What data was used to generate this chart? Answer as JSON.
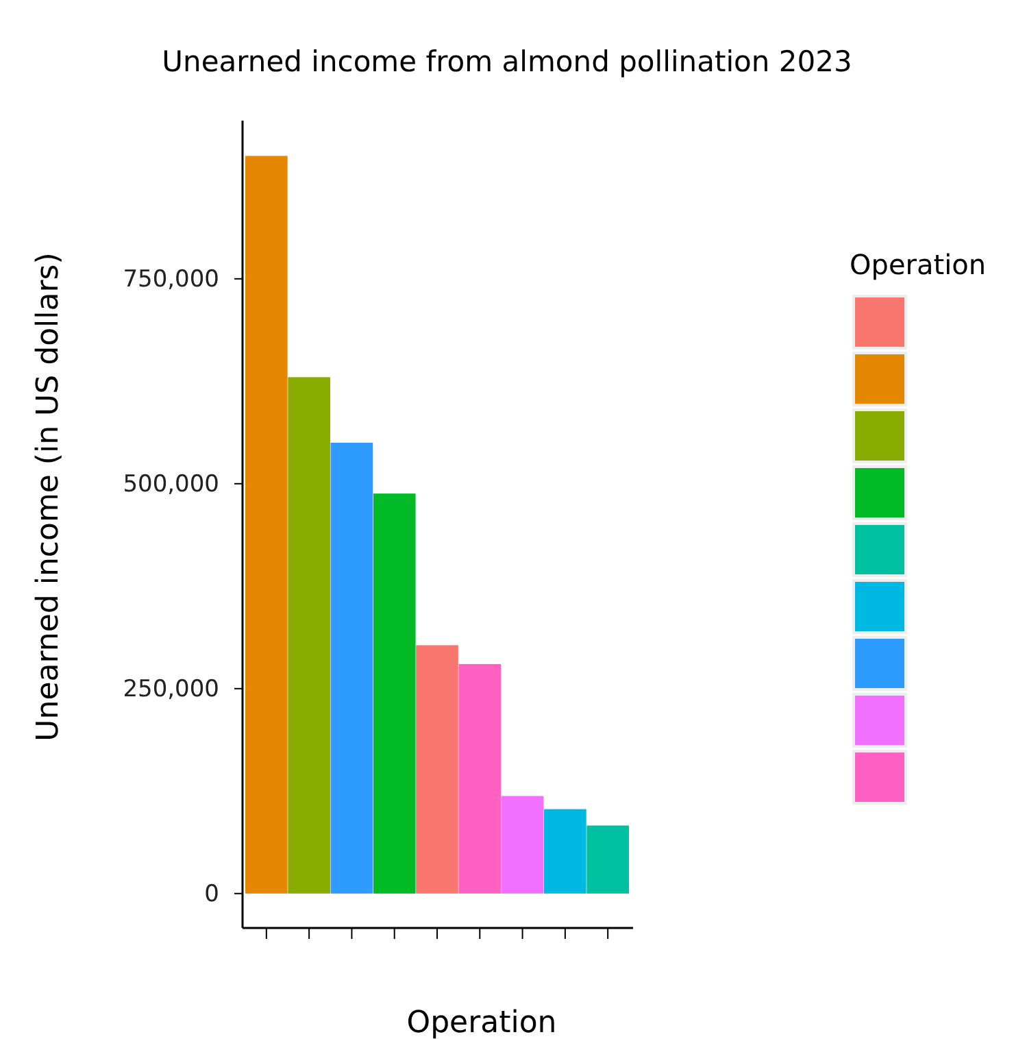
{
  "chart_data": {
    "type": "bar",
    "title": "Unearned income from almond pollination 2023",
    "xlabel": "Operation",
    "ylabel": "Unearned income (in US dollars)",
    "legend_title": "Operation",
    "tick_labels": "y",
    "grid": false,
    "categories": [
      null,
      null,
      null,
      null,
      null,
      null,
      null,
      null,
      null
    ],
    "ylim": [
      -42000,
      943000
    ],
    "yticks": [
      {
        "value": 0,
        "label": "0"
      },
      {
        "value": 250000,
        "label": "250,000"
      },
      {
        "value": 500000,
        "label": "500,000"
      },
      {
        "value": 750000,
        "label": "750,000"
      }
    ],
    "series": [
      {
        "color": "#F8766D",
        "values": [
          null,
          null,
          null,
          null,
          303000,
          null,
          null,
          null,
          null
        ]
      },
      {
        "color": "#E58700",
        "values": [
          900000,
          null,
          null,
          null,
          null,
          null,
          null,
          null,
          null
        ]
      },
      {
        "color": "#8AAB00",
        "values": [
          null,
          630000,
          null,
          null,
          null,
          null,
          null,
          null,
          null
        ]
      },
      {
        "color": "#00BA26",
        "values": [
          null,
          null,
          null,
          488000,
          null,
          null,
          null,
          null,
          null
        ]
      },
      {
        "color": "#00C19F",
        "values": [
          null,
          null,
          null,
          null,
          null,
          null,
          null,
          null,
          83000
        ]
      },
      {
        "color": "#00B9E3",
        "values": [
          null,
          null,
          null,
          null,
          null,
          null,
          null,
          103000,
          null
        ]
      },
      {
        "color": "#2E9CFF",
        "values": [
          null,
          null,
          550000,
          null,
          null,
          null,
          null,
          null,
          null
        ]
      },
      {
        "color": "#F270FF",
        "values": [
          null,
          null,
          null,
          null,
          null,
          null,
          119000,
          null,
          null
        ]
      },
      {
        "color": "#FF61C3",
        "values": [
          null,
          null,
          null,
          null,
          null,
          280000,
          null,
          null,
          null
        ]
      }
    ]
  }
}
